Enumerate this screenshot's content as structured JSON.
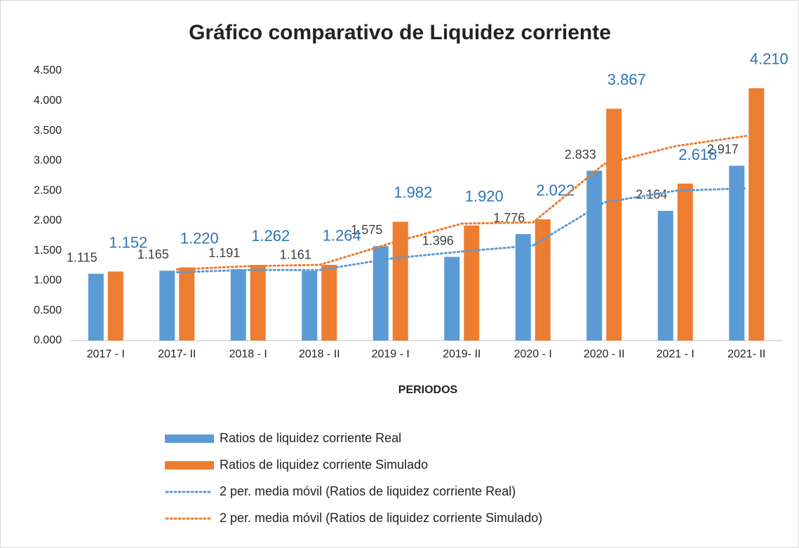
{
  "chart_data": {
    "type": "bar",
    "title": "Gráfico comparativo de Liquidez corriente",
    "x_label": "PERIODOS",
    "categories": [
      "2017 - I",
      "2017- II",
      "2018 - I",
      "2018 - II",
      "2019 - I",
      "2019- II",
      "2020 - I",
      "2020 - II",
      "2021 - I",
      "2021- II"
    ],
    "series": [
      {
        "name": "Ratios de liquidez corriente Real",
        "color": "#5b9bd5",
        "kind": "bar",
        "values": [
          1.115,
          1.165,
          1.191,
          1.161,
          1.575,
          1.396,
          1.776,
          2.833,
          2.164,
          2.917
        ],
        "value_labels": [
          "1.115",
          "1.165",
          "1.191",
          "1.161",
          "1.575",
          "1.396",
          "1.776",
          "2.833",
          "2.164",
          "2.917"
        ]
      },
      {
        "name": "Ratios de liquidez corriente Simulado",
        "color": "#ed7d31",
        "kind": "bar",
        "values": [
          1.152,
          1.22,
          1.262,
          1.264,
          1.982,
          1.92,
          2.022,
          3.867,
          2.618,
          4.21
        ],
        "value_labels": [
          "1.152",
          "1.220",
          "1.262",
          "1.264",
          "1.982",
          "1.920",
          "2.022",
          "3.867",
          "2.618",
          "4.210"
        ]
      },
      {
        "name": "2 per. media móvil (Ratios de liquidez corriente Real)",
        "color": "#5b9bd5",
        "kind": "line",
        "values": [
          null,
          1.14,
          1.178,
          1.176,
          1.368,
          1.4855,
          1.586,
          2.3045,
          2.4985,
          2.5405
        ]
      },
      {
        "name": "2 per. media móvil (Ratios de liquidez corriente Simulado)",
        "color": "#ed7d31",
        "kind": "line",
        "values": [
          null,
          1.186,
          1.241,
          1.263,
          1.623,
          1.951,
          1.971,
          2.9445,
          3.2425,
          3.414
        ]
      }
    ],
    "ylim": [
      0,
      4.5
    ],
    "yticks": [
      {
        "value": 0,
        "label": "0.000"
      },
      {
        "value": 0.5,
        "label": "0.500"
      },
      {
        "value": 1,
        "label": "1.000"
      },
      {
        "value": 1.5,
        "label": "1.500"
      },
      {
        "value": 2,
        "label": "2.000"
      },
      {
        "value": 2.5,
        "label": "2.500"
      },
      {
        "value": 3,
        "label": "3.000"
      },
      {
        "value": 3.5,
        "label": "3.500"
      },
      {
        "value": 4,
        "label": "4.000"
      },
      {
        "value": 4.5,
        "label": "4.500"
      }
    ],
    "grid": false
  }
}
